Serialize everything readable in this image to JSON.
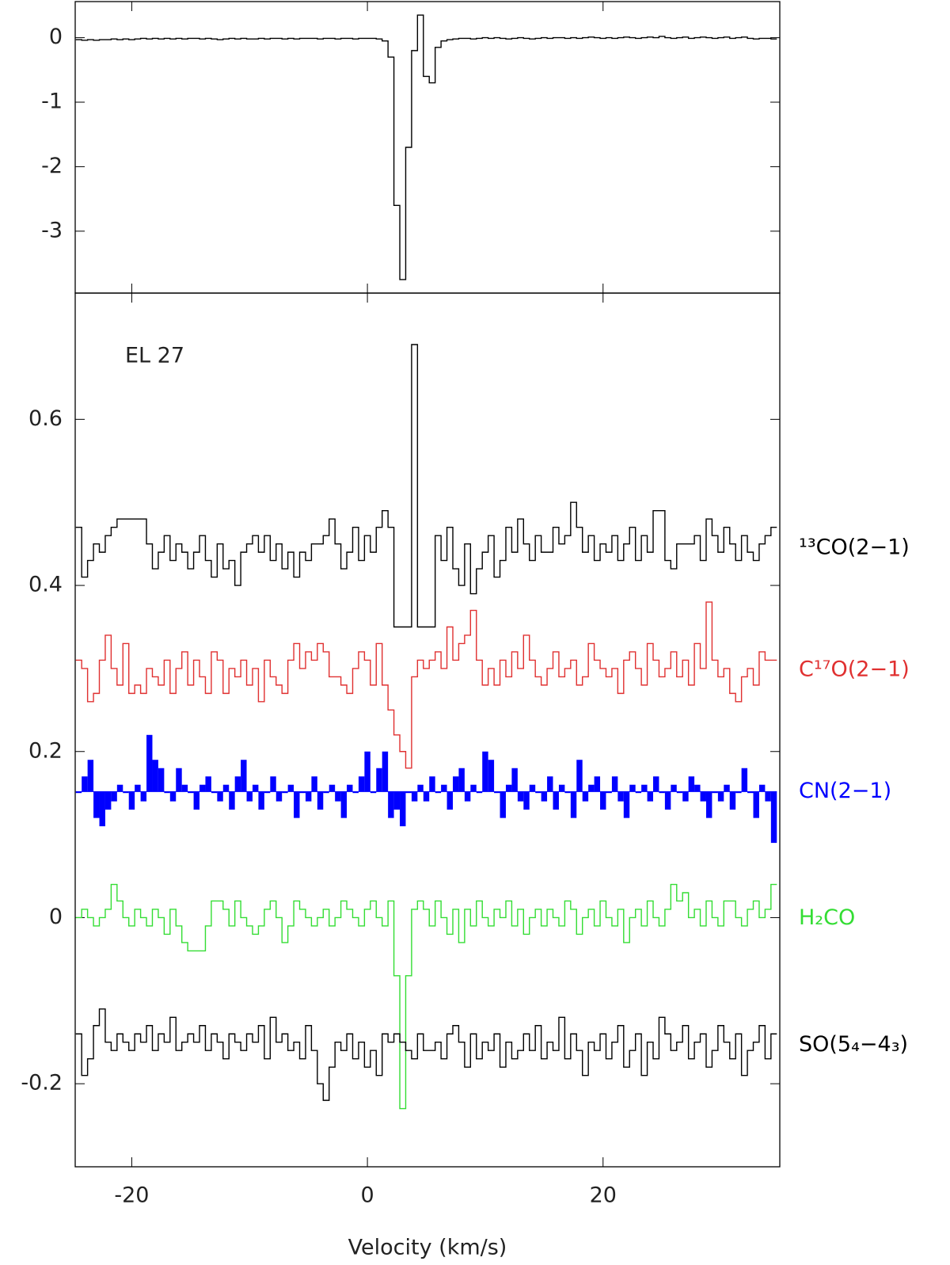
{
  "chart_data": [
    {
      "type": "line",
      "drawstyle": "steps-mid",
      "x": [
        -24.5,
        -24,
        -23.5,
        -23,
        -22.5,
        -22,
        -21.5,
        -21,
        -20.5,
        -20,
        -19.5,
        -19,
        -18.5,
        -18,
        -17.5,
        -17,
        -16.5,
        -16,
        -15.5,
        -15,
        -14.5,
        -14,
        -13.5,
        -13,
        -12.5,
        -12,
        -11.5,
        -11,
        -10.5,
        -10,
        -9.5,
        -9,
        -8.5,
        -8,
        -7.5,
        -7,
        -6.5,
        -6,
        -5.5,
        -5,
        -4.5,
        -4,
        -3.5,
        -3,
        -2.5,
        -2,
        -1.5,
        -1,
        -0.5,
        0,
        0.5,
        1,
        1.5,
        2,
        2.5,
        3,
        3.5,
        4,
        4.5,
        5,
        5.5,
        6,
        6.5,
        7,
        7.5,
        8,
        8.5,
        9,
        9.5,
        10,
        10.5,
        11,
        11.5,
        12,
        12.5,
        13,
        13.5,
        14,
        14.5,
        15,
        15.5,
        16,
        16.5,
        17,
        17.5,
        18,
        18.5,
        19,
        19.5,
        20,
        20.5,
        21,
        21.5,
        22,
        22.5,
        23,
        23.5,
        24,
        24.5,
        25,
        25.5,
        26,
        26.5,
        27,
        27.5,
        28,
        28.5,
        29,
        29.5,
        30,
        30.5,
        31,
        31.5,
        32,
        32.5,
        33,
        33.5,
        34,
        34.5
      ],
      "xlim": [
        -24.8,
        35
      ],
      "xticks": [
        -20,
        0,
        20
      ],
      "xtick_labels": false,
      "ylim": [
        -3.96,
        0.56
      ],
      "yticks": [
        0,
        -1,
        -2,
        -3
      ],
      "series": [
        {
          "color": "#000000",
          "values": [
            -0.03,
            -0.04,
            -0.03,
            -0.04,
            -0.03,
            -0.03,
            -0.02,
            -0.03,
            -0.02,
            -0.03,
            -0.02,
            -0.01,
            -0.02,
            -0.01,
            -0.02,
            -0.01,
            -0.02,
            -0.01,
            -0.02,
            -0.01,
            -0.01,
            -0.02,
            -0.01,
            -0.02,
            -0.03,
            -0.02,
            -0.01,
            -0.02,
            -0.01,
            -0.02,
            -0.02,
            -0.01,
            -0.02,
            -0.01,
            -0.01,
            -0.02,
            -0.01,
            -0.02,
            -0.01,
            -0.01,
            -0.01,
            -0.02,
            -0.01,
            -0.01,
            -0.02,
            -0.01,
            -0.01,
            -0.02,
            -0.01,
            -0.01,
            -0.01,
            -0.02,
            -0.05,
            -0.3,
            -2.6,
            -3.75,
            -1.7,
            -0.2,
            0.35,
            -0.6,
            -0.7,
            -0.15,
            -0.05,
            -0.03,
            -0.02,
            -0.01,
            -0.01,
            -0.02,
            -0.01,
            0.0,
            -0.01,
            0.0,
            -0.01,
            -0.02,
            -0.01,
            0.0,
            -0.01,
            -0.02,
            -0.01,
            0.0,
            -0.01,
            0.0,
            0.0,
            -0.01,
            0.0,
            -0.01,
            0.0,
            0.01,
            0.0,
            -0.01,
            0.0,
            -0.01,
            0.0,
            0.01,
            0.0,
            -0.01,
            0.0,
            0.01,
            0.0,
            0.02,
            0.0,
            -0.01,
            0.0,
            0.01,
            -0.01,
            0.0,
            0.01,
            0.0,
            -0.01,
            0.0,
            0.01,
            -0.01,
            0.0,
            0.01,
            -0.01,
            -0.02,
            -0.01,
            -0.01,
            -0.02
          ]
        }
      ]
    },
    {
      "type": "line",
      "drawstyle": "steps-mid",
      "annotation": "EL 27",
      "xlabel": "Velocity (km/s)",
      "x": [
        -24.5,
        -24,
        -23.5,
        -23,
        -22.5,
        -22,
        -21.5,
        -21,
        -20.5,
        -20,
        -19.5,
        -19,
        -18.5,
        -18,
        -17.5,
        -17,
        -16.5,
        -16,
        -15.5,
        -15,
        -14.5,
        -14,
        -13.5,
        -13,
        -12.5,
        -12,
        -11.5,
        -11,
        -10.5,
        -10,
        -9.5,
        -9,
        -8.5,
        -8,
        -7.5,
        -7,
        -6.5,
        -6,
        -5.5,
        -5,
        -4.5,
        -4,
        -3.5,
        -3,
        -2.5,
        -2,
        -1.5,
        -1,
        -0.5,
        0,
        0.5,
        1,
        1.5,
        2,
        2.5,
        3,
        3.5,
        4,
        4.5,
        5,
        5.5,
        6,
        6.5,
        7,
        7.5,
        8,
        8.5,
        9,
        9.5,
        10,
        10.5,
        11,
        11.5,
        12,
        12.5,
        13,
        13.5,
        14,
        14.5,
        15,
        15.5,
        16,
        16.5,
        17,
        17.5,
        18,
        18.5,
        19,
        19.5,
        20,
        20.5,
        21,
        21.5,
        22,
        22.5,
        23,
        23.5,
        24,
        24.5,
        25,
        25.5,
        26,
        26.5,
        27,
        27.5,
        28,
        28.5,
        29,
        29.5,
        30,
        30.5,
        31,
        31.5,
        32,
        32.5,
        33,
        33.5,
        34,
        34.5
      ],
      "xlim": [
        -24.8,
        35
      ],
      "xticks": [
        -20,
        0,
        20
      ],
      "ylim": [
        -0.3,
        0.752
      ],
      "yticks": [
        0.6,
        0.4,
        0.2,
        0,
        -0.2
      ],
      "series": [
        {
          "name": "¹³CO(2−1)",
          "color": "#000000",
          "values": [
            0.47,
            0.41,
            0.43,
            0.45,
            0.44,
            0.46,
            0.47,
            0.48,
            0.48,
            0.48,
            0.48,
            0.48,
            0.45,
            0.42,
            0.44,
            0.46,
            0.43,
            0.45,
            0.44,
            0.42,
            0.44,
            0.46,
            0.43,
            0.41,
            0.45,
            0.42,
            0.43,
            0.4,
            0.44,
            0.45,
            0.46,
            0.44,
            0.46,
            0.43,
            0.45,
            0.42,
            0.44,
            0.41,
            0.44,
            0.43,
            0.45,
            0.45,
            0.46,
            0.48,
            0.45,
            0.42,
            0.44,
            0.47,
            0.43,
            0.46,
            0.44,
            0.47,
            0.49,
            0.47,
            0.35,
            0.35,
            0.35,
            0.69,
            0.35,
            0.35,
            0.35,
            0.46,
            0.43,
            0.47,
            0.42,
            0.4,
            0.45,
            0.39,
            0.42,
            0.44,
            0.46,
            0.41,
            0.43,
            0.47,
            0.44,
            0.48,
            0.45,
            0.43,
            0.46,
            0.44,
            0.44,
            0.47,
            0.45,
            0.46,
            0.5,
            0.47,
            0.44,
            0.46,
            0.43,
            0.45,
            0.44,
            0.46,
            0.43,
            0.45,
            0.47,
            0.43,
            0.46,
            0.44,
            0.49,
            0.49,
            0.43,
            0.42,
            0.45,
            0.45,
            0.45,
            0.46,
            0.43,
            0.48,
            0.46,
            0.44,
            0.47,
            0.45,
            0.43,
            0.46,
            0.44,
            0.43,
            0.45,
            0.46,
            0.47
          ]
        },
        {
          "name": "C¹⁷O(2−1)",
          "color": "#e03030",
          "values": [
            0.31,
            0.3,
            0.26,
            0.27,
            0.31,
            0.34,
            0.3,
            0.28,
            0.33,
            0.27,
            0.28,
            0.27,
            0.3,
            0.29,
            0.28,
            0.31,
            0.27,
            0.3,
            0.32,
            0.28,
            0.31,
            0.29,
            0.27,
            0.32,
            0.31,
            0.27,
            0.3,
            0.29,
            0.31,
            0.28,
            0.3,
            0.26,
            0.31,
            0.29,
            0.28,
            0.27,
            0.31,
            0.33,
            0.3,
            0.32,
            0.31,
            0.33,
            0.32,
            0.29,
            0.29,
            0.28,
            0.27,
            0.3,
            0.32,
            0.31,
            0.28,
            0.33,
            0.28,
            0.25,
            0.22,
            0.2,
            0.18,
            0.29,
            0.31,
            0.3,
            0.31,
            0.32,
            0.3,
            0.35,
            0.31,
            0.33,
            0.34,
            0.37,
            0.31,
            0.28,
            0.3,
            0.28,
            0.31,
            0.29,
            0.32,
            0.3,
            0.34,
            0.31,
            0.29,
            0.28,
            0.3,
            0.32,
            0.29,
            0.3,
            0.31,
            0.28,
            0.29,
            0.33,
            0.31,
            0.3,
            0.29,
            0.3,
            0.27,
            0.31,
            0.32,
            0.3,
            0.28,
            0.33,
            0.31,
            0.29,
            0.3,
            0.32,
            0.29,
            0.31,
            0.28,
            0.33,
            0.3,
            0.38,
            0.31,
            0.29,
            0.3,
            0.27,
            0.26,
            0.29,
            0.3,
            0.28,
            0.32,
            0.31,
            0.31
          ]
        },
        {
          "name": "CN(2−1)",
          "color": "#0000ff",
          "filled": true,
          "values": [
            0.15,
            0.17,
            0.19,
            0.12,
            0.11,
            0.13,
            0.14,
            0.16,
            0.15,
            0.13,
            0.16,
            0.14,
            0.22,
            0.19,
            0.18,
            0.15,
            0.14,
            0.18,
            0.16,
            0.15,
            0.13,
            0.16,
            0.17,
            0.15,
            0.14,
            0.16,
            0.13,
            0.17,
            0.19,
            0.14,
            0.16,
            0.13,
            0.15,
            0.17,
            0.14,
            0.15,
            0.16,
            0.12,
            0.15,
            0.14,
            0.17,
            0.13,
            0.15,
            0.16,
            0.14,
            0.12,
            0.16,
            0.15,
            0.17,
            0.2,
            0.15,
            0.18,
            0.2,
            0.12,
            0.13,
            0.11,
            0.15,
            0.14,
            0.16,
            0.14,
            0.17,
            0.15,
            0.16,
            0.13,
            0.17,
            0.18,
            0.14,
            0.16,
            0.15,
            0.2,
            0.19,
            0.15,
            0.12,
            0.16,
            0.18,
            0.14,
            0.13,
            0.16,
            0.15,
            0.14,
            0.17,
            0.13,
            0.16,
            0.15,
            0.12,
            0.19,
            0.14,
            0.16,
            0.17,
            0.13,
            0.15,
            0.17,
            0.14,
            0.12,
            0.16,
            0.15,
            0.16,
            0.14,
            0.17,
            0.15,
            0.13,
            0.16,
            0.15,
            0.14,
            0.17,
            0.16,
            0.14,
            0.12,
            0.15,
            0.14,
            0.16,
            0.13,
            0.15,
            0.18,
            0.15,
            0.12,
            0.16,
            0.14,
            0.09
          ]
        },
        {
          "name": "H₂CO",
          "color": "#33dd33",
          "values": [
            0.0,
            0.01,
            0.0,
            -0.01,
            0.0,
            0.01,
            0.04,
            0.02,
            0.0,
            -0.01,
            0.01,
            0.0,
            -0.01,
            0.01,
            0.0,
            -0.02,
            0.01,
            -0.01,
            -0.03,
            -0.04,
            -0.04,
            -0.04,
            -0.01,
            0.02,
            0.02,
            0.01,
            -0.01,
            0.02,
            0.0,
            -0.01,
            -0.02,
            -0.01,
            0.01,
            0.02,
            0.0,
            -0.03,
            -0.01,
            0.02,
            0.01,
            0.0,
            -0.01,
            0.0,
            0.01,
            -0.01,
            0.0,
            0.02,
            0.01,
            0.0,
            -0.01,
            0.01,
            0.02,
            0.0,
            -0.01,
            0.02,
            -0.07,
            -0.23,
            -0.07,
            0.01,
            0.02,
            0.01,
            -0.01,
            0.02,
            0.0,
            -0.02,
            0.01,
            -0.03,
            0.01,
            -0.01,
            0.02,
            0.0,
            -0.01,
            0.01,
            0.0,
            0.02,
            -0.01,
            0.01,
            -0.02,
            0.0,
            0.01,
            -0.01,
            0.01,
            0.0,
            -0.01,
            0.02,
            0.01,
            -0.02,
            0.0,
            0.01,
            -0.01,
            0.02,
            0.0,
            -0.01,
            0.01,
            -0.03,
            0.0,
            0.01,
            -0.01,
            0.02,
            0.0,
            -0.01,
            0.01,
            0.04,
            0.02,
            0.03,
            0.0,
            0.01,
            -0.01,
            0.02,
            0.0,
            -0.01,
            0.02,
            0.02,
            0.0,
            -0.01,
            0.01,
            0.02,
            0.0,
            0.01,
            0.04
          ]
        },
        {
          "name": "SO(5₄−4₃)",
          "color": "#000000",
          "values": [
            -0.14,
            -0.19,
            -0.17,
            -0.13,
            -0.11,
            -0.15,
            -0.16,
            -0.14,
            -0.15,
            -0.16,
            -0.14,
            -0.15,
            -0.13,
            -0.16,
            -0.14,
            -0.15,
            -0.12,
            -0.16,
            -0.15,
            -0.14,
            -0.15,
            -0.13,
            -0.16,
            -0.14,
            -0.15,
            -0.17,
            -0.14,
            -0.15,
            -0.16,
            -0.14,
            -0.15,
            -0.13,
            -0.17,
            -0.12,
            -0.15,
            -0.14,
            -0.16,
            -0.15,
            -0.17,
            -0.13,
            -0.16,
            -0.2,
            -0.22,
            -0.18,
            -0.15,
            -0.16,
            -0.14,
            -0.17,
            -0.15,
            -0.18,
            -0.16,
            -0.19,
            -0.14,
            -0.15,
            -0.14,
            -0.15,
            -0.16,
            -0.17,
            -0.14,
            -0.16,
            -0.16,
            -0.15,
            -0.17,
            -0.14,
            -0.13,
            -0.15,
            -0.18,
            -0.14,
            -0.17,
            -0.15,
            -0.16,
            -0.14,
            -0.18,
            -0.15,
            -0.17,
            -0.16,
            -0.14,
            -0.16,
            -0.13,
            -0.17,
            -0.15,
            -0.16,
            -0.12,
            -0.17,
            -0.14,
            -0.16,
            -0.19,
            -0.15,
            -0.16,
            -0.14,
            -0.17,
            -0.15,
            -0.13,
            -0.18,
            -0.16,
            -0.14,
            -0.19,
            -0.15,
            -0.17,
            -0.12,
            -0.14,
            -0.16,
            -0.15,
            -0.13,
            -0.17,
            -0.15,
            -0.14,
            -0.18,
            -0.16,
            -0.13,
            -0.15,
            -0.17,
            -0.14,
            -0.19,
            -0.16,
            -0.15,
            -0.13,
            -0.17,
            -0.14
          ]
        }
      ]
    }
  ]
}
